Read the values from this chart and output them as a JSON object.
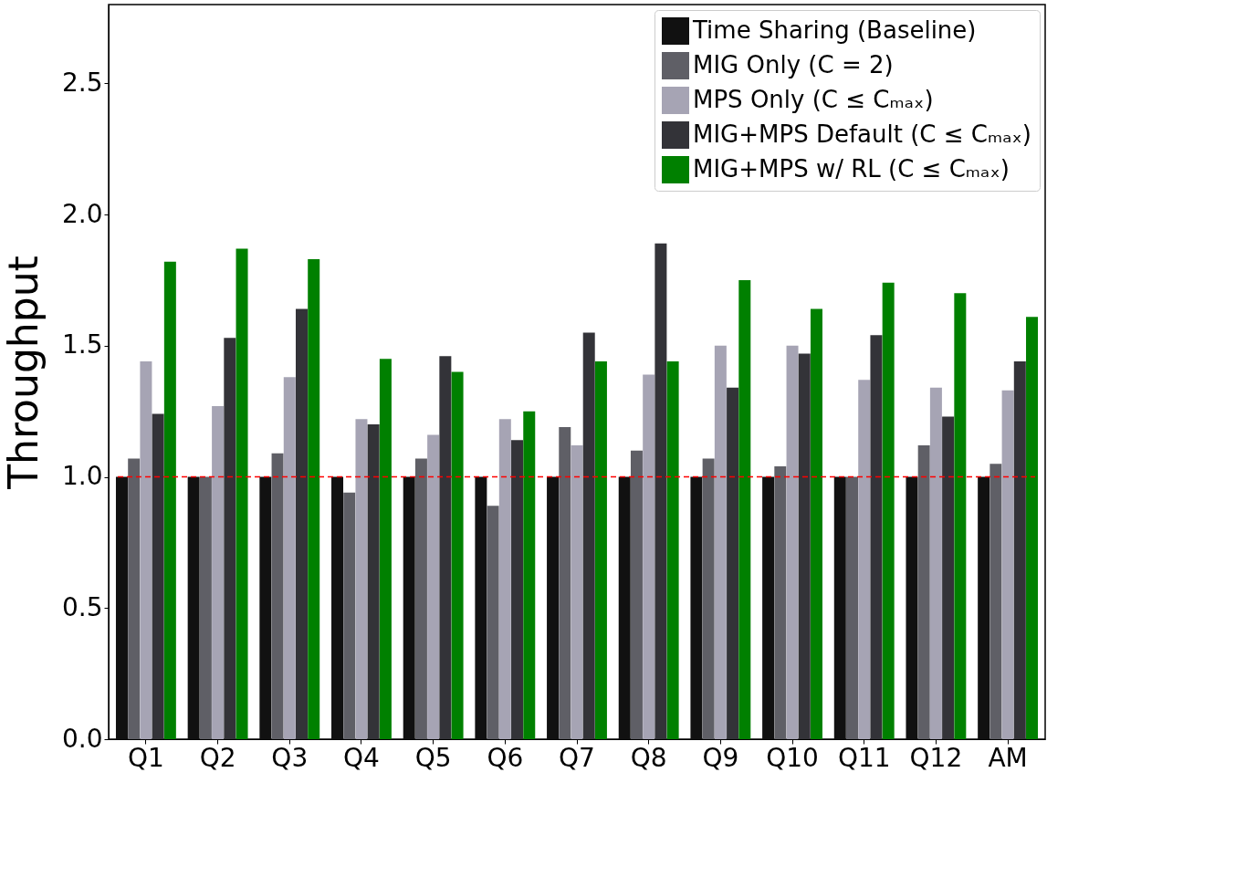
{
  "chart_data": {
    "type": "bar",
    "ylabel": "Throughput",
    "categories": [
      "Q1",
      "Q2",
      "Q3",
      "Q4",
      "Q5",
      "Q6",
      "Q7",
      "Q8",
      "Q9",
      "Q10",
      "Q11",
      "Q12",
      "AM"
    ],
    "series": [
      {
        "name": "Time Sharing (Baseline)",
        "color": "#111111",
        "values": [
          1,
          1,
          1,
          1,
          1,
          1,
          1,
          1,
          1,
          1,
          1,
          1,
          1
        ]
      },
      {
        "name": "MIG Only (C = 2)",
        "color": "#5f5f66",
        "values": [
          1.07,
          1.0,
          1.09,
          0.94,
          1.07,
          0.89,
          1.19,
          1.1,
          1.07,
          1.04,
          1.0,
          1.12,
          1.05
        ]
      },
      {
        "name": "MPS Only (C ≤ Cₘₐₓ)",
        "color": "#a6a4b4",
        "values": [
          1.44,
          1.27,
          1.38,
          1.22,
          1.16,
          1.22,
          1.12,
          1.39,
          1.5,
          1.5,
          1.37,
          1.34,
          1.33
        ]
      },
      {
        "name": "MIG+MPS Default (C ≤ Cₘₐₓ)",
        "color": "#333338",
        "values": [
          1.24,
          1.53,
          1.64,
          1.2,
          1.46,
          1.14,
          1.55,
          1.89,
          1.34,
          1.47,
          1.54,
          1.23,
          1.44
        ]
      },
      {
        "name": "MIG+MPS w/ RL (C ≤ Cₘₐₓ)",
        "color": "#008000",
        "values": [
          1.82,
          1.87,
          1.83,
          1.45,
          1.4,
          1.25,
          1.44,
          1.44,
          1.75,
          1.64,
          1.74,
          1.7,
          1.61
        ]
      }
    ],
    "ylim": [
      0,
      2.8
    ],
    "yticks": [
      {
        "value": 0,
        "label": "0.0"
      },
      0.5,
      {
        "value": 1,
        "label": "1.0"
      },
      1.5,
      {
        "value": 2,
        "label": "2.0"
      },
      2.5
    ],
    "ref_lines": [
      {
        "axis": "y",
        "value": 1.0,
        "color": "#ff0000",
        "line_style": "dashed"
      }
    ],
    "legend": "top right",
    "grid": false
  }
}
